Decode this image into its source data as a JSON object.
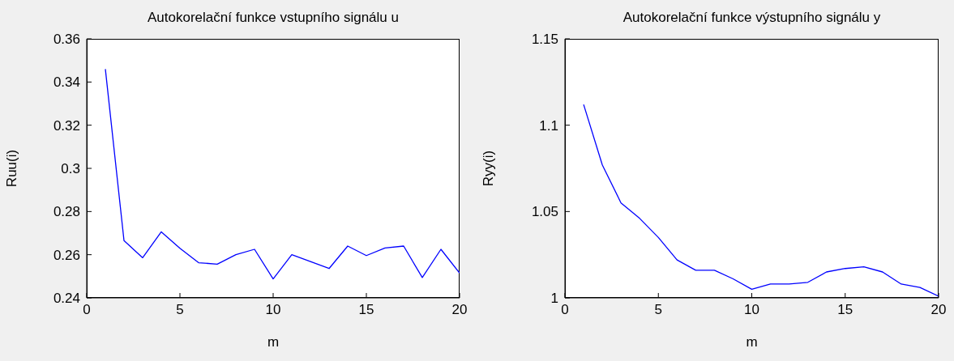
{
  "chart_data": [
    {
      "type": "line",
      "title": "Autokorelační funkce vstupního signálu u",
      "xlabel": "m",
      "ylabel": "Ruu(i)",
      "x": [
        1,
        2,
        3,
        4,
        5,
        6,
        7,
        8,
        9,
        10,
        11,
        12,
        13,
        14,
        15,
        16,
        17,
        18,
        19,
        20
      ],
      "series": [
        {
          "color": "#0000ff",
          "values": [
            0.346,
            0.2665,
            0.2586,
            0.2706,
            0.263,
            0.2563,
            0.2556,
            0.26,
            0.2625,
            0.2488,
            0.26,
            0.2568,
            0.2536,
            0.264,
            0.2596,
            0.2631,
            0.264,
            0.2494,
            0.2625,
            0.2515
          ]
        }
      ],
      "xlim": [
        0,
        20
      ],
      "xticks": [
        0,
        5,
        10,
        15,
        20
      ],
      "ylim": [
        0.24,
        0.36
      ],
      "yticks": [
        0.24,
        0.26,
        0.28,
        0.3,
        0.32,
        0.34,
        0.36
      ],
      "grid": false,
      "legend": false,
      "marker": "none",
      "line_style": "solid"
    },
    {
      "type": "line",
      "title": "Autokorelační funkce výstupního signálu y",
      "xlabel": "m",
      "ylabel": "Ryy(i)",
      "x": [
        1,
        2,
        3,
        4,
        5,
        6,
        7,
        8,
        9,
        10,
        11,
        12,
        13,
        14,
        15,
        16,
        17,
        18,
        19,
        20
      ],
      "series": [
        {
          "color": "#0000ff",
          "values": [
            1.112,
            1.077,
            1.055,
            1.046,
            1.035,
            1.022,
            1.016,
            1.016,
            1.011,
            1.005,
            1.008,
            1.008,
            1.009,
            1.015,
            1.017,
            1.018,
            1.015,
            1.008,
            1.006,
            1.001
          ]
        }
      ],
      "xlim": [
        0,
        20
      ],
      "xticks": [
        0,
        5,
        10,
        15,
        20
      ],
      "ylim": [
        1,
        1.15
      ],
      "yticks": [
        1,
        1.05,
        1.1,
        1.15
      ],
      "grid": false,
      "legend": false,
      "marker": "none",
      "line_style": "solid"
    }
  ]
}
